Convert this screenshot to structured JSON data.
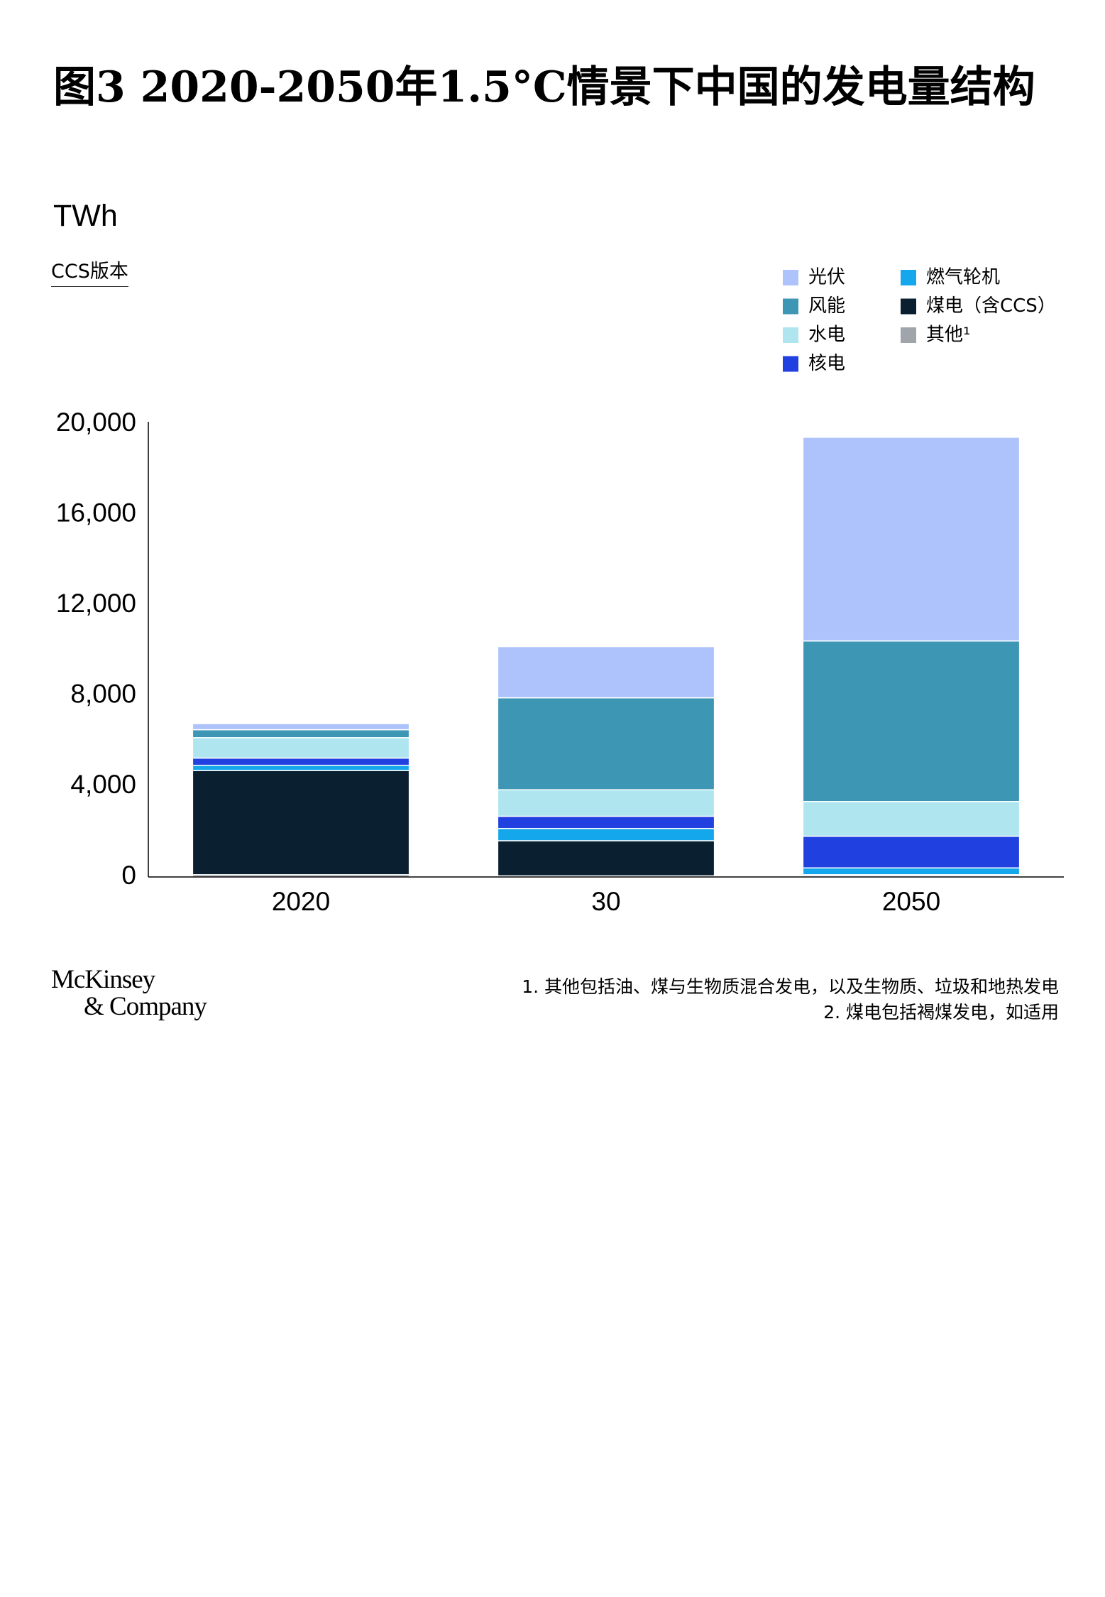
{
  "header": {
    "title": "图3 2020-2050年1.5°C情景下中国的发电量结构",
    "unit": "TWh",
    "version": "CCS版本"
  },
  "chart_data": {
    "type": "stacked_bar",
    "categories": [
      "2020",
      "30",
      "2050"
    ],
    "series": [
      {
        "name": "光伏",
        "color": "#aec3fb",
        "values": [
          270,
          2260,
          8990
        ]
      },
      {
        "name": "风能",
        "color": "#3d96b4",
        "values": [
          350,
          4060,
          7090
        ]
      },
      {
        "name": "水电",
        "color": "#aee5ee",
        "values": [
          900,
          1170,
          1530
        ]
      },
      {
        "name": "核电",
        "color": "#2040e0",
        "values": [
          320,
          540,
          1400
        ]
      },
      {
        "name": "燃气轮机",
        "color": "#14a7ec",
        "values": [
          230,
          540,
          300
        ]
      },
      {
        "name": "煤电（含CCS）",
        "color": "#0a1f30",
        "values": [
          4600,
          1550,
          50
        ]
      },
      {
        "name": "其他¹",
        "color": "#a0a4ab",
        "values": [
          100,
          50,
          50
        ]
      }
    ],
    "ylim": [
      0,
      20000
    ],
    "yticks": [
      0,
      {
        "value": 4000,
        "label": "4,000"
      },
      {
        "value": 8000,
        "label": "8,000"
      },
      {
        "value": 12000,
        "label": "12,000"
      },
      {
        "value": 16000,
        "label": "16,000"
      },
      {
        "value": 20000,
        "label": "20,000"
      }
    ],
    "grid": false
  },
  "footnotes": [
    "1. 其他包括油、煤与生物质混合发电，以及生物质、垃圾和地热发电",
    "2. 煤电包括褐煤发电，如适用"
  ],
  "logo": {
    "line1": "McKinsey",
    "line2": "& Company"
  }
}
